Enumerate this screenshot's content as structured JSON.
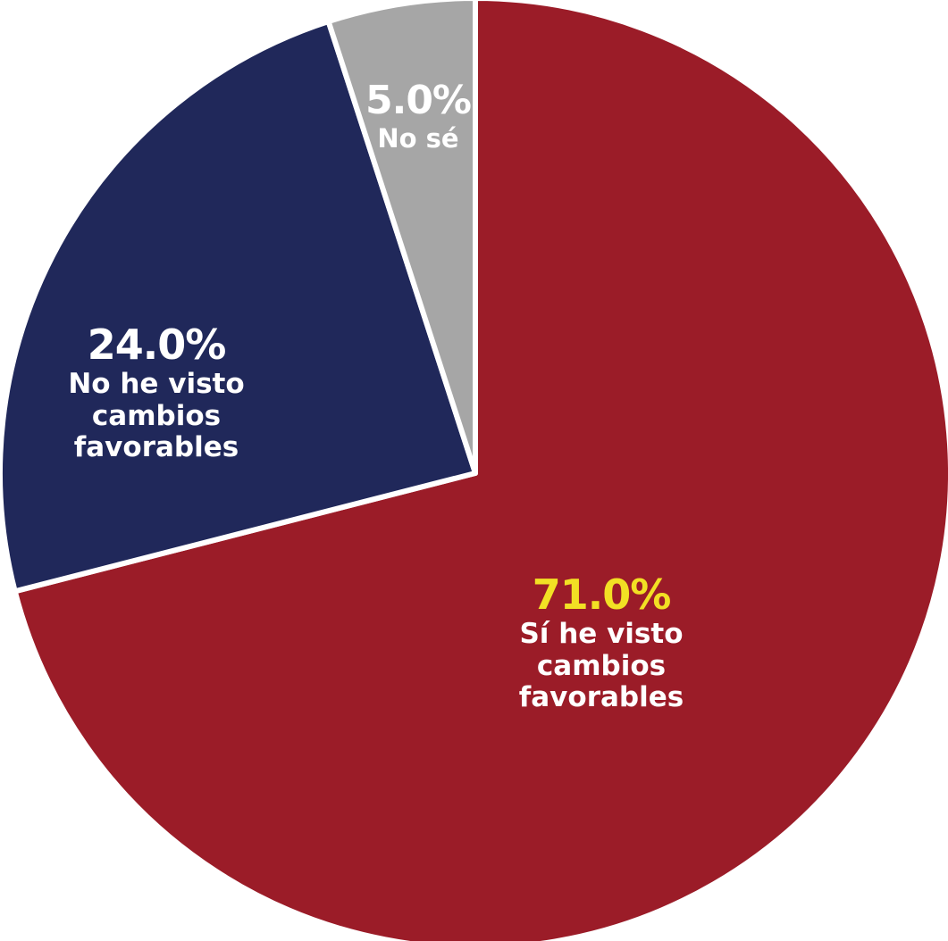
{
  "chart_data": {
    "type": "pie",
    "categories": [
      "Sí he visto cambios favorables",
      "No he visto cambios favorables",
      "No sé"
    ],
    "values": [
      71,
      24,
      5
    ],
    "value_labels": [
      "71.0%",
      "24.0%",
      "5.0%"
    ],
    "colors": [
      "#9b1c28",
      "#20285a",
      "#a6a6a6"
    ],
    "value_label_colors": [
      "#f2e024",
      "#ffffff",
      "#ffffff"
    ]
  }
}
